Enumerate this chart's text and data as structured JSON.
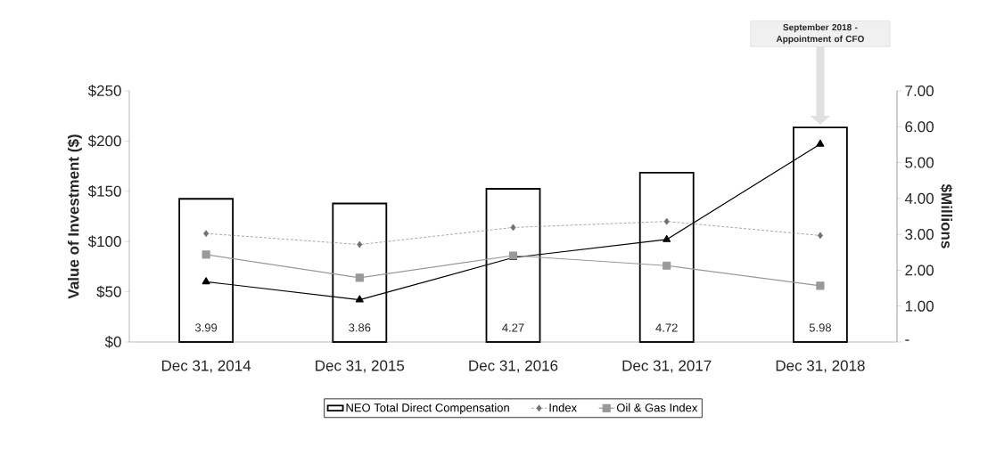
{
  "chart_data": {
    "type": "bar",
    "ylabel": "Value of Investment ($)",
    "y2label": "$Millions",
    "annotations": [
      "September 2018 - Appointment of CFO"
    ],
    "categories": [
      "Dec 31, 2014",
      "Dec 31, 2015",
      "Dec 31, 2016",
      "Dec 31, 2017",
      "Dec 31, 2018"
    ],
    "ylim": [
      0,
      250
    ],
    "yticks": [
      {
        "value": 0,
        "label": "$0"
      },
      {
        "value": 50,
        "label": "$50"
      },
      {
        "value": 100,
        "label": "$100"
      },
      {
        "value": 150,
        "label": "$150"
      },
      {
        "value": 200,
        "label": "$200"
      },
      {
        "value": 250,
        "label": "$250"
      }
    ],
    "y2lim": [
      0,
      7
    ],
    "y2ticks": [
      {
        "value": 0,
        "label": "-"
      },
      {
        "value": 1,
        "label": "1.00"
      },
      {
        "value": 2,
        "label": "2.00"
      },
      {
        "value": 3,
        "label": "3.00"
      },
      {
        "value": 4,
        "label": "4.00"
      },
      {
        "value": 5,
        "label": "5.00"
      },
      {
        "value": 6,
        "label": "6.00"
      },
      {
        "value": 7,
        "label": "7.00"
      }
    ],
    "legend": "bottom",
    "series": [
      {
        "name": "NEO Total Direct Compensation",
        "axis": "y2",
        "color": "#000000",
        "values": [
          3.99,
          3.86,
          4.27,
          4.72,
          5.98
        ],
        "value_labels": [
          "3.99",
          "3.86",
          "4.27",
          "4.72",
          "5.98"
        ]
      },
      {
        "type": "line",
        "color": "#000000",
        "marker": "triangle",
        "line_style": "solid",
        "values": [
          60,
          42,
          84,
          102,
          197
        ]
      },
      {
        "name": "Index",
        "type": "line",
        "color": "#707070",
        "marker": "diamond",
        "line_style": "dashed",
        "values": [
          108,
          97,
          114,
          120,
          106
        ]
      },
      {
        "name": "Oil & Gas Index",
        "type": "line",
        "color": "#999999",
        "marker": "square",
        "line_style": "solid",
        "values": [
          87,
          64,
          86,
          76,
          56
        ]
      }
    ]
  }
}
